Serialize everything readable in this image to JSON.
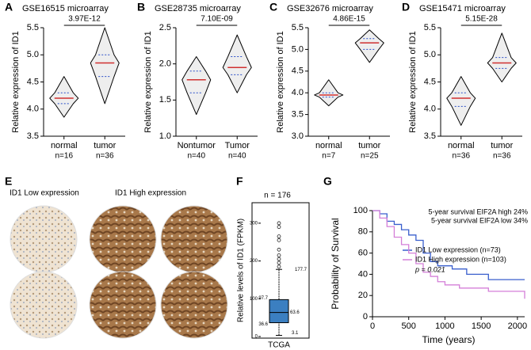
{
  "chart_data": [
    {
      "type": "violin",
      "panel": "A",
      "title": "GSE16515 microarray",
      "y_label": "Relative expression of ID1",
      "categories": [
        "normal",
        "tumor"
      ],
      "n_labels": [
        "n=16",
        "n=36"
      ],
      "p_label": "3.97E-12",
      "ylim": [
        3.5,
        5.5
      ],
      "yticks": [
        {
          "value": 3.5,
          "label": "3.5"
        },
        {
          "value": 4.0,
          "label": "4.0"
        },
        {
          "value": 4.5,
          "label": "4.5"
        },
        {
          "value": 5.0,
          "label": "5.0"
        },
        {
          "value": 5.5,
          "label": "5.5"
        }
      ],
      "groups": [
        {
          "min": 3.85,
          "q1": 4.1,
          "median": 4.2,
          "q3": 4.3,
          "max": 4.6
        },
        {
          "min": 4.1,
          "q1": 4.6,
          "median": 4.85,
          "q3": 5.0,
          "max": 5.5
        }
      ]
    },
    {
      "type": "violin",
      "panel": "B",
      "title": "GSE28735 microarray",
      "y_label": "Relative expression of ID1",
      "categories": [
        "Nontumor",
        "Tumor"
      ],
      "n_labels": [
        "n=40",
        "n=40"
      ],
      "p_label": "7.10E-09",
      "ylim": [
        1.0,
        2.5
      ],
      "yticks": [
        {
          "value": 1.0,
          "label": "1.0"
        },
        1.5,
        {
          "value": 2.0,
          "label": "2.0"
        },
        2.5
      ],
      "groups": [
        {
          "min": 1.3,
          "q1": 1.6,
          "median": 1.78,
          "q3": 1.9,
          "max": 2.1
        },
        {
          "min": 1.6,
          "q1": 1.85,
          "median": 1.95,
          "q3": 2.1,
          "max": 2.4
        }
      ]
    },
    {
      "type": "violin",
      "panel": "C",
      "title": "GSE32676 microarray",
      "y_label": "Relative expression of ID1",
      "categories": [
        "normal",
        "tumor"
      ],
      "n_labels": [
        "n=7",
        "n=25"
      ],
      "p_label": "4.86E-15",
      "ylim": [
        3.0,
        5.5
      ],
      "yticks": [
        {
          "value": 3.0,
          "label": "3.0"
        },
        3.5,
        {
          "value": 4.0,
          "label": "4.0"
        },
        4.5,
        {
          "value": 5.0,
          "label": "5.0"
        },
        5.5
      ],
      "groups": [
        {
          "min": 3.7,
          "q1": 3.9,
          "median": 3.95,
          "q3": 4.0,
          "max": 4.3
        },
        {
          "min": 4.7,
          "q1": 5.0,
          "median": 5.15,
          "q3": 5.25,
          "max": 5.45
        }
      ]
    },
    {
      "type": "violin",
      "panel": "D",
      "title": "GSE15471 microarray",
      "y_label": "Relative expression of ID1",
      "categories": [
        "normal",
        "tumor"
      ],
      "n_labels": [
        "n=36",
        "n=36"
      ],
      "p_label": "5.15E-28",
      "ylim": [
        3.5,
        5.5
      ],
      "yticks": [
        {
          "value": 3.5,
          "label": "3.5"
        },
        {
          "value": 4.0,
          "label": "4.0"
        },
        {
          "value": 4.5,
          "label": "4.5"
        },
        {
          "value": 5.0,
          "label": "5.0"
        },
        {
          "value": 5.5,
          "label": "5.5"
        }
      ],
      "groups": [
        {
          "min": 3.7,
          "q1": 4.05,
          "median": 4.2,
          "q3": 4.3,
          "max": 4.6
        },
        {
          "min": 4.5,
          "q1": 4.75,
          "median": 4.85,
          "q3": 4.95,
          "max": 5.4
        }
      ]
    },
    {
      "type": "ihc",
      "panel": "E",
      "labels": [
        "ID1 Low expression",
        "ID1 High expression"
      ]
    },
    {
      "type": "box",
      "panel": "F",
      "title": "n = 176",
      "y_label": "Relative levels of ID1 (FPKM)",
      "x_label": "TCGA",
      "ylim": [
        0,
        350
      ],
      "yticks": [
        0,
        100,
        200,
        300
      ],
      "color": "#3b7fc1",
      "box": {
        "min": 3.1,
        "q1": 36.6,
        "median": 63.6,
        "q3": 97.7,
        "max": 177.7
      },
      "outliers": [
        185,
        195,
        205,
        215,
        230,
        255,
        265,
        290,
        300
      ]
    },
    {
      "type": "km",
      "panel": "G",
      "y_label": "Probability of Survival",
      "x_label": "Time (years)",
      "xlim": [
        0,
        2100
      ],
      "xticks": [
        0,
        500,
        1000,
        1500,
        2000
      ],
      "ylim": [
        0,
        100
      ],
      "yticks": [
        0,
        20,
        40,
        60,
        80,
        100
      ],
      "annotations": [
        "5-year survival EIF2A high 24%",
        "5-year survival EIF2A low 34%",
        "p = 0.021"
      ],
      "series": [
        {
          "name": "ID1 Low expression (n=73)",
          "color": "#3a5fcd",
          "x": [
            0,
            100,
            200,
            300,
            400,
            500,
            600,
            700,
            800,
            900,
            1100,
            1300,
            1600,
            2100
          ],
          "values": [
            100,
            97,
            90,
            87,
            82,
            77,
            72,
            60,
            52,
            48,
            45,
            40,
            35,
            35
          ]
        },
        {
          "name": "ID1 High expression (n=103)",
          "color": "#d47fd8",
          "x": [
            0,
            100,
            200,
            300,
            400,
            500,
            600,
            700,
            800,
            900,
            1000,
            1200,
            1600,
            2050,
            2100
          ],
          "values": [
            100,
            93,
            85,
            75,
            68,
            60,
            50,
            42,
            38,
            33,
            30,
            27,
            24,
            24,
            17
          ]
        }
      ]
    }
  ]
}
